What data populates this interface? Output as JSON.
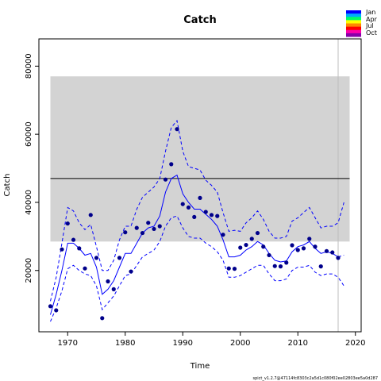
{
  "chart_data": {
    "type": "line",
    "title": "Catch",
    "xlabel": "Time",
    "ylabel": "Catch",
    "footer": "spict_v1.2.7@47114fc8303c2a5d1c080f02ee02803ee5a0d287",
    "xlim": [
      1965,
      2021
    ],
    "ylim": [
      2000,
      88000
    ],
    "x_ticks": [
      1970,
      1980,
      1990,
      2000,
      2010,
      2020
    ],
    "y_ticks": [
      20000,
      40000,
      60000,
      80000
    ],
    "grid": false,
    "colors": {
      "band": "#d3d3d3",
      "line": "#0000ff",
      "points": "#00008b",
      "msy_line": "#000000",
      "vline": "#bebebe"
    },
    "reference": {
      "msy": 47000,
      "msy_lower": 28500,
      "msy_upper": 77000,
      "band_x": [
        1967,
        2019
      ]
    },
    "forecast_start": 2017,
    "legend": {
      "position": "top-right",
      "labels": [
        "Jan",
        "Apr",
        "Jul",
        "Oct"
      ],
      "gradient": [
        "#0000ff",
        "#00aaff",
        "#00ff66",
        "#ffff00",
        "#ff8800",
        "#ff0000",
        "#ff00aa",
        "#8800aa"
      ]
    },
    "observations": {
      "x": [
        1967,
        1968,
        1969,
        1970,
        1971,
        1972,
        1973,
        1974,
        1975,
        1976,
        1977,
        1978,
        1979,
        1980,
        1981,
        1982,
        1983,
        1984,
        1985,
        1986,
        1987,
        1988,
        1989,
        1990,
        1991,
        1992,
        1993,
        1994,
        1995,
        1996,
        1997,
        1998,
        1999,
        2000,
        2001,
        2002,
        2003,
        2004,
        2005,
        2006,
        2007,
        2008,
        2009,
        2010,
        2011,
        2012,
        2013,
        2014,
        2015,
        2016,
        2017
      ],
      "y": [
        9500,
        8300,
        26200,
        33800,
        29000,
        26500,
        20600,
        36300,
        23700,
        6000,
        16800,
        14500,
        23700,
        31200,
        19700,
        32500,
        31000,
        34000,
        32200,
        33000,
        46700,
        51200,
        61500,
        39500,
        38500,
        35700,
        41300,
        37200,
        36300,
        36000,
        30500,
        20600,
        20500,
        26700,
        27500,
        29300,
        31000,
        27000,
        24500,
        21300,
        21200,
        22300,
        27400,
        26000,
        26500,
        29300,
        27000,
        21200,
        25700,
        25300,
        23700
      ]
    },
    "series": [
      {
        "x": [
          1967,
          1968,
          1969,
          1970,
          1971,
          1972,
          1973,
          1974,
          1975,
          1976,
          1977,
          1978,
          1979,
          1980,
          1981,
          1982,
          1983,
          1984,
          1985,
          1986,
          1987,
          1988,
          1989,
          1990,
          1991,
          1992,
          1993,
          1994,
          1995,
          1996,
          1997,
          1998,
          1999,
          2000,
          2001,
          2002,
          2003,
          2004,
          2005,
          2006,
          2007,
          2008,
          2009,
          2010,
          2011,
          2012,
          2013,
          2014,
          2015,
          2016,
          2017
        ],
        "values": [
          7000,
          13000,
          20000,
          28000,
          28000,
          26500,
          24500,
          25000,
          21000,
          13000,
          14500,
          17000,
          21000,
          25000,
          25000,
          28000,
          31000,
          32500,
          33000,
          36000,
          43000,
          47000,
          48000,
          42500,
          40000,
          38000,
          38000,
          36500,
          35000,
          33000,
          29000,
          24000,
          24000,
          24500,
          26000,
          27000,
          28500,
          27500,
          25000,
          23000,
          22500,
          22800,
          25500,
          27000,
          27500,
          28500,
          26500,
          25000,
          25500,
          25000,
          24000
        ],
        "style": "solid"
      },
      {
        "x": [
          2017,
          2018
        ],
        "values": [
          24000,
          24500
        ],
        "style": "dashed"
      },
      {
        "x": [
          1967,
          1968,
          1969,
          1970,
          1971,
          1972,
          1973,
          1974,
          1975,
          1976,
          1977,
          1978,
          1979,
          1980,
          1981,
          1982,
          1983,
          1984,
          1985,
          1986,
          1987,
          1988,
          1989,
          1990,
          1991,
          1992,
          1993,
          1994,
          1995,
          1996,
          1997,
          1998,
          1999,
          2000,
          2001,
          2002,
          2003,
          2004,
          2005,
          2006,
          2007,
          2008,
          2009,
          2010,
          2011,
          2012,
          2013,
          2014,
          2015,
          2016,
          2017,
          2018
        ],
        "values": [
          11000,
          18000,
          28000,
          38500,
          37500,
          34000,
          32000,
          33500,
          27000,
          20000,
          20000,
          23000,
          29000,
          33000,
          33000,
          38000,
          41500,
          43000,
          44500,
          47000,
          55000,
          62000,
          64000,
          55000,
          50500,
          50000,
          49500,
          46500,
          45000,
          43000,
          37000,
          31500,
          31800,
          31500,
          34000,
          35500,
          37500,
          35000,
          31500,
          29500,
          29500,
          30000,
          34500,
          35500,
          37000,
          38500,
          35500,
          32500,
          33000,
          33000,
          34000,
          40000
        ],
        "style": "dashed"
      },
      {
        "x": [
          1967,
          1968,
          1969,
          1970,
          1971,
          1972,
          1973,
          1974,
          1975,
          1976,
          1977,
          1978,
          1979,
          1980,
          1981,
          1982,
          1983,
          1984,
          1985,
          1986,
          1987,
          1988,
          1989,
          1990,
          1991,
          1992,
          1993,
          1994,
          1995,
          1996,
          1997,
          1998,
          1999,
          2000,
          2001,
          2002,
          2003,
          2004,
          2005,
          2006,
          2007,
          2008,
          2009,
          2010,
          2011,
          2012,
          2013,
          2014,
          2015,
          2016,
          2017,
          2018
        ],
        "values": [
          5000,
          9000,
          14000,
          20500,
          21500,
          20000,
          19000,
          18500,
          15500,
          8500,
          10500,
          12500,
          15500,
          18500,
          19000,
          21500,
          24000,
          25000,
          26000,
          28500,
          33000,
          35500,
          36000,
          32500,
          30000,
          29500,
          29500,
          28000,
          27000,
          25500,
          23000,
          18000,
          18000,
          18500,
          19500,
          20500,
          21500,
          21500,
          19000,
          17000,
          17000,
          17500,
          20000,
          21000,
          21000,
          21500,
          19500,
          18500,
          19000,
          19000,
          18000,
          15500
        ],
        "style": "dashed"
      }
    ]
  }
}
